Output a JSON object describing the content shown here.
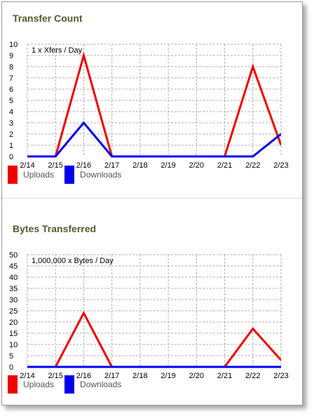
{
  "colors": {
    "title": "#4e5e2e",
    "uploads": "#ee0000",
    "downloads": "#0000ee",
    "grid": "#b0b0b0"
  },
  "sections": [
    {
      "title": "Transfer Count"
    },
    {
      "title": "Bytes Transferred"
    }
  ],
  "legend": {
    "uploads_label": "Uploads",
    "downloads_label": "Downloads"
  },
  "chart_data": [
    {
      "type": "line",
      "title": "Transfer Count",
      "unit_label": "1 x Xfers / Day",
      "categories": [
        "2/14",
        "2/15",
        "2/16",
        "2/17",
        "2/18",
        "2/19",
        "2/20",
        "2/21",
        "2/22",
        "2/23"
      ],
      "yticks": [
        0,
        1,
        2,
        3,
        4,
        5,
        6,
        7,
        8,
        9,
        10
      ],
      "ylim": [
        0,
        10
      ],
      "grid": true,
      "legend_position": "bottom-left",
      "series": [
        {
          "name": "Uploads",
          "color": "#ee0000",
          "values": [
            0,
            0,
            9,
            0,
            0,
            0,
            0,
            0,
            8,
            1
          ]
        },
        {
          "name": "Downloads",
          "color": "#0000ee",
          "values": [
            0,
            0,
            3,
            0,
            0,
            0,
            0,
            0,
            0,
            2
          ]
        }
      ]
    },
    {
      "type": "line",
      "title": "Bytes Transferred",
      "unit_label": "1,000,000 x Bytes / Day",
      "categories": [
        "2/14",
        "2/15",
        "2/16",
        "2/17",
        "2/18",
        "2/19",
        "2/20",
        "2/21",
        "2/22",
        "2/23"
      ],
      "yticks": [
        0,
        5,
        10,
        15,
        20,
        25,
        30,
        35,
        40,
        45,
        50
      ],
      "ylim": [
        0,
        50
      ],
      "grid": true,
      "legend_position": "bottom-left",
      "series": [
        {
          "name": "Uploads",
          "color": "#ee0000",
          "values": [
            0,
            0,
            24,
            0,
            0,
            0,
            0,
            0,
            17,
            3
          ]
        },
        {
          "name": "Downloads",
          "color": "#0000ee",
          "values": [
            0,
            0,
            0,
            0,
            0,
            0,
            0,
            0,
            0,
            0
          ]
        }
      ]
    }
  ]
}
